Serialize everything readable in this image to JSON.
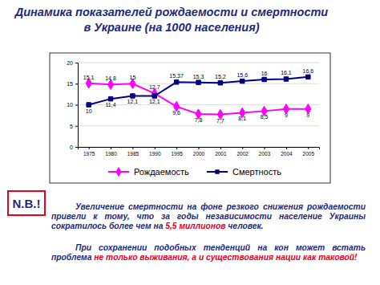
{
  "chart_data": {
    "type": "line",
    "title": "Динамика показателей рождаемости и смертности\nв Украине (на 1000 населения)",
    "categories": [
      "1975",
      "1980",
      "1985",
      "1990",
      "1995",
      "2000",
      "2001",
      "2002",
      "2003",
      "2004",
      "2005"
    ],
    "series": [
      {
        "name": "Рождаемость",
        "color": "#ff00ff",
        "marker": "diamond",
        "values": [
          15.1,
          14.8,
          15,
          12.7,
          9.6,
          7.8,
          7.7,
          8.1,
          8.5,
          9,
          9
        ],
        "value_labels": [
          "15,1",
          "14,8",
          "15",
          "12,7",
          "9,6",
          "7,8",
          "7,7",
          "8,1",
          "8,5",
          "9",
          "9"
        ]
      },
      {
        "name": "Смертность",
        "color": "#000080",
        "marker": "square",
        "values": [
          10,
          11.4,
          12.1,
          12.1,
          15.37,
          15.3,
          15.2,
          15.6,
          16,
          16.1,
          16.6
        ],
        "value_labels": [
          "10",
          "11,4",
          "12,1",
          "12,1",
          "15,37",
          "15,3",
          "15,2",
          "15,6",
          "16",
          "16,1",
          "16,6"
        ]
      }
    ],
    "ylim": [
      0,
      20
    ],
    "yticks": [
      0,
      5,
      10,
      15,
      20
    ],
    "grid": true,
    "data_labels": true,
    "legend": "bottom"
  },
  "note": {
    "badge": "N.B.!",
    "paragraphs": [
      [
        {
          "text": "Увеличение смертности на фоне резкого снижения рождаемости привели к тому, что за годы независимости население Украины сократилось более чем на ",
          "color": "#1f2a7c"
        },
        {
          "text": "5,5 миллионов",
          "color": "#e8001c"
        },
        {
          "text": " человек.",
          "color": "#1f2a7c"
        }
      ],
      [
        {
          "text": "При сохранении подобных тенденций на кон может встать проблема ",
          "color": "#1f2a7c"
        },
        {
          "text": "не только выживания, а и существования нации как таковой!",
          "color": "#e8001c"
        }
      ]
    ]
  }
}
